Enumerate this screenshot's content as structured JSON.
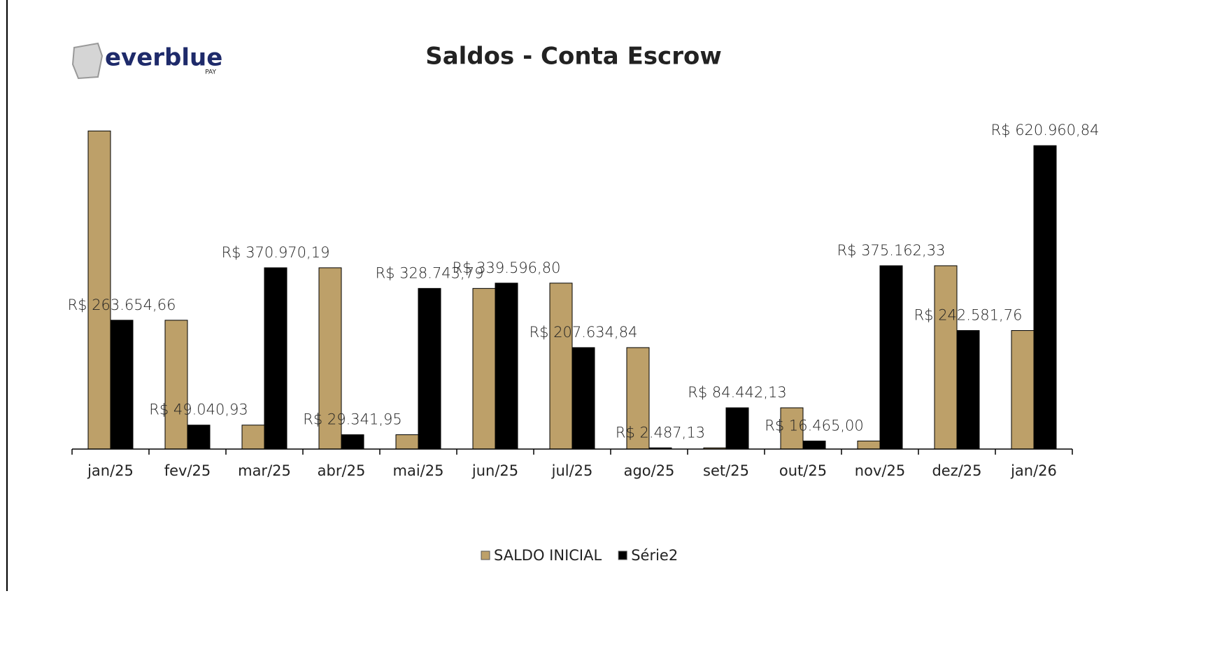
{
  "logo": {
    "text": "everblue",
    "sub": "PAY"
  },
  "chart_data": {
    "type": "bar",
    "title": "Saldos - Conta Escrow",
    "categories": [
      "jan/25",
      "fev/25",
      "mar/25",
      "abr/25",
      "mai/25",
      "jun/25",
      "jul/25",
      "ago/25",
      "set/25",
      "out/25",
      "nov/25",
      "dez/25",
      "jan/26"
    ],
    "series": [
      {
        "name": "SALDO INICIAL",
        "color": "#bda069",
        "values": [
          651000,
          263654.66,
          49040.93,
          370970.19,
          29341.95,
          328743.79,
          339596.8,
          207634.84,
          2487.13,
          84442.13,
          16465.0,
          375162.33,
          242581.76
        ]
      },
      {
        "name": "Série2",
        "color": "#000000",
        "values": [
          263654.66,
          49040.93,
          370970.19,
          29341.95,
          328743.79,
          339596.8,
          207634.84,
          2487.13,
          84442.13,
          16465.0,
          375162.33,
          242581.76,
          620960.84
        ],
        "value_labels": [
          "R$ 263.654,66",
          "R$ 49.040,93",
          "R$ 370.970,19",
          "R$ 29.341,95",
          "R$ 328.743,79",
          "R$ 339.596,80",
          "R$ 207.634,84",
          "R$ 2.487,13",
          "R$ 84.442,13",
          "R$ 16.465,00",
          "R$ 375.162,33",
          "R$ 242.581,76",
          "R$ 620.960,84"
        ]
      }
    ],
    "ylim": [
      0,
      700000
    ],
    "legend": "bottom"
  }
}
